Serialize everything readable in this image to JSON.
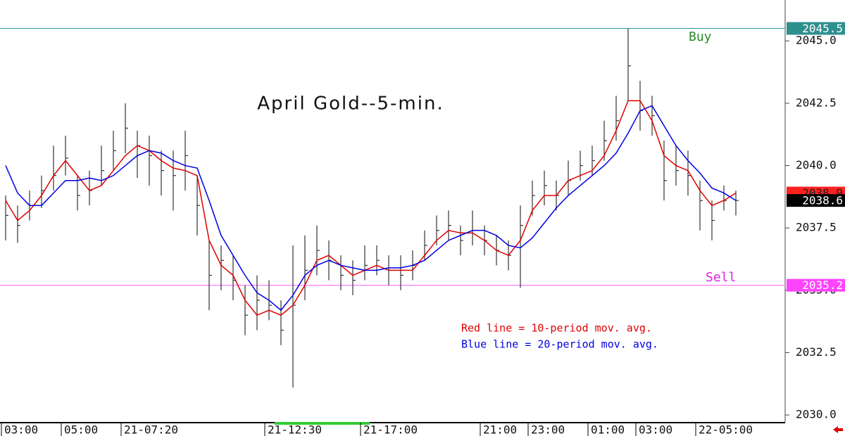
{
  "chart_data": {
    "type": "ohlc",
    "title": "April Gold--5-min.",
    "categories": [
      "03:00",
      null,
      null,
      null,
      null,
      "05:00",
      null,
      null,
      null,
      null,
      "21-07:20",
      null,
      null,
      null,
      null,
      null,
      null,
      null,
      null,
      null,
      null,
      null,
      "21-12:30",
      null,
      null,
      null,
      null,
      null,
      null,
      null,
      "21-17:00",
      null,
      null,
      null,
      null,
      null,
      null,
      null,
      null,
      null,
      "21:00",
      null,
      null,
      null,
      "23:00",
      null,
      null,
      null,
      null,
      "01:00",
      null,
      null,
      null,
      "03:00",
      null,
      null,
      null,
      null,
      "22-05:00",
      null,
      null,
      null
    ],
    "high": [
      2038.8,
      2038.4,
      2039.0,
      2039.6,
      2040.8,
      2041.2,
      2039.6,
      2039.8,
      2040.8,
      2041.4,
      2042.5,
      2041.4,
      2041.2,
      2040.6,
      2040.6,
      2041.4,
      2039.6,
      2037.0,
      2036.8,
      2036.4,
      2035.2,
      2035.6,
      2035.4,
      2034.6,
      2036.8,
      2037.2,
      2037.6,
      2037.0,
      2036.4,
      2036.2,
      2036.8,
      2036.8,
      2036.4,
      2036.4,
      2036.6,
      2037.4,
      2038.0,
      2038.2,
      2037.6,
      2038.2,
      2037.6,
      2037.2,
      2037.0,
      2038.4,
      2039.4,
      2039.8,
      2039.4,
      2040.2,
      2040.6,
      2040.8,
      2041.8,
      2042.8,
      2045.5,
      2043.4,
      2042.8,
      2041.0,
      2040.8,
      2040.6,
      2039.4,
      2038.6,
      2039.2,
      2039.0
    ],
    "low": [
      2037.0,
      2036.9,
      2037.8,
      2038.3,
      2039.0,
      2039.6,
      2038.2,
      2038.4,
      2039.2,
      2039.8,
      2040.5,
      2039.5,
      2039.2,
      2038.8,
      2038.2,
      2039.0,
      2037.2,
      2034.2,
      2035.0,
      2034.6,
      2033.2,
      2033.4,
      2033.8,
      2032.8,
      2031.1,
      2034.6,
      2035.6,
      2035.4,
      2035.0,
      2034.8,
      2035.4,
      2035.6,
      2035.2,
      2035.0,
      2035.4,
      2036.2,
      2036.8,
      2037.0,
      2036.4,
      2036.8,
      2036.4,
      2036.0,
      2035.8,
      2035.1,
      2038.0,
      2038.4,
      2038.2,
      2038.8,
      2039.4,
      2039.6,
      2040.2,
      2041.0,
      2042.6,
      2041.4,
      2041.2,
      2038.6,
      2039.2,
      2038.8,
      2037.4,
      2037.0,
      2038.2,
      2038.0
    ],
    "close": [
      2038.0,
      2037.6,
      2038.4,
      2039.0,
      2039.6,
      2040.3,
      2038.8,
      2039.0,
      2039.8,
      2040.6,
      2041.5,
      2040.8,
      2040.4,
      2039.8,
      2039.6,
      2040.4,
      2038.4,
      2035.6,
      2036.2,
      2035.4,
      2034.0,
      2034.6,
      2034.4,
      2033.4,
      2034.4,
      2035.8,
      2036.6,
      2036.2,
      2035.6,
      2035.4,
      2036.0,
      2036.2,
      2035.8,
      2035.6,
      2036.0,
      2036.8,
      2037.4,
      2037.6,
      2037.0,
      2037.4,
      2037.0,
      2036.6,
      2036.4,
      2037.6,
      2038.8,
      2039.2,
      2038.8,
      2039.4,
      2040.0,
      2040.2,
      2041.0,
      2041.8,
      2044.0,
      2042.2,
      2042.0,
      2039.4,
      2039.8,
      2039.6,
      2038.6,
      2037.8,
      2038.6,
      2038.6
    ],
    "bar_color": "#333333",
    "series": [
      {
        "name": "Red line = 10-period mov. avg.",
        "color": "#e00000",
        "values": [
          2038.6,
          2037.8,
          2038.2,
          2038.8,
          2039.6,
          2040.2,
          2039.6,
          2039.0,
          2039.2,
          2039.8,
          2040.4,
          2040.8,
          2040.6,
          2040.2,
          2039.9,
          2039.8,
          2039.6,
          2037.0,
          2036.0,
          2035.6,
          2034.6,
          2034.0,
          2034.2,
          2034.0,
          2034.4,
          2035.2,
          2036.2,
          2036.4,
          2036.0,
          2035.6,
          2035.8,
          2036.0,
          2035.8,
          2035.8,
          2035.8,
          2036.4,
          2037.0,
          2037.4,
          2037.3,
          2037.3,
          2037.0,
          2036.6,
          2036.4,
          2037.0,
          2038.2,
          2038.8,
          2038.8,
          2039.4,
          2039.6,
          2039.8,
          2040.4,
          2041.4,
          2042.6,
          2042.6,
          2041.8,
          2040.4,
          2040.0,
          2039.8,
          2039.0,
          2038.4,
          2038.6,
          2038.9
        ]
      },
      {
        "name": "Blue line = 20-period mov. avg.",
        "color": "#0000e0",
        "values": [
          2040.0,
          2038.9,
          2038.4,
          2038.4,
          2038.9,
          2039.4,
          2039.4,
          2039.5,
          2039.4,
          2039.6,
          2040.0,
          2040.4,
          2040.6,
          2040.5,
          2040.2,
          2040.0,
          2039.9,
          2038.6,
          2037.2,
          2036.4,
          2035.6,
          2034.9,
          2034.6,
          2034.2,
          2034.8,
          2035.6,
          2036.0,
          2036.2,
          2036.0,
          2035.9,
          2035.8,
          2035.8,
          2035.9,
          2035.9,
          2036.0,
          2036.2,
          2036.6,
          2037.0,
          2037.2,
          2037.4,
          2037.4,
          2037.2,
          2036.8,
          2036.7,
          2037.1,
          2037.7,
          2038.3,
          2038.8,
          2039.2,
          2039.6,
          2040.0,
          2040.5,
          2041.3,
          2042.2,
          2042.4,
          2041.6,
          2040.8,
          2040.2,
          2039.7,
          2039.1,
          2038.9,
          2038.6
        ]
      }
    ],
    "ylim": [
      2029.72,
      2046.64
    ],
    "yticks": [
      {
        "value": 2030,
        "label": "2030.0"
      },
      2032.5,
      {
        "value": 2035,
        "label": "2035.0"
      },
      2037.5,
      {
        "value": 2040,
        "label": "2040.0"
      },
      2042.5,
      {
        "value": 2045,
        "label": "2045.0"
      }
    ],
    "hlines": [
      {
        "value": 2045.5,
        "label": "Buy",
        "color": "#3a9a9a",
        "label_color": "#2a8a2a"
      },
      {
        "value": 2035.2,
        "label": "Sell",
        "color": "#ff6cff",
        "label_color": "#e020e0"
      }
    ],
    "price_tags": [
      {
        "value": 2045.5,
        "color": "#2e8f8f",
        "text_color": "#ffffff"
      },
      {
        "value": 2035.2,
        "color": "#ff44ff",
        "text_color": "#ffffff"
      },
      {
        "value": 2038.9,
        "color": "#ff2020",
        "text_color": "#222222"
      },
      {
        "value": 2038.6,
        "color": "#000000",
        "text_color": "#ffffff"
      }
    ],
    "grid": false
  }
}
